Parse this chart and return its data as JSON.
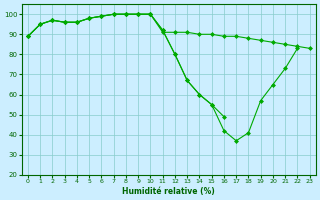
{
  "xlabel": "Humidité relative (%)",
  "background_color": "#cceeff",
  "grid_color": "#88cccc",
  "line_color": "#00aa00",
  "xlim": [
    -0.5,
    23.5
  ],
  "ylim": [
    20,
    105
  ],
  "yticks": [
    20,
    30,
    40,
    50,
    60,
    70,
    80,
    90,
    100
  ],
  "xticks": [
    0,
    1,
    2,
    3,
    4,
    5,
    6,
    7,
    8,
    9,
    10,
    11,
    12,
    13,
    14,
    15,
    16,
    17,
    18,
    19,
    20,
    21,
    22,
    23
  ],
  "line1_x": [
    0,
    1,
    2,
    3,
    4,
    5,
    6,
    7,
    8,
    9,
    10,
    11,
    12,
    13,
    14,
    15,
    16
  ],
  "line1_y": [
    89,
    95,
    97,
    96,
    96,
    98,
    99,
    100,
    100,
    100,
    100,
    92,
    80,
    67,
    60,
    55,
    49
  ],
  "line2_x": [
    0,
    1,
    2,
    3,
    4,
    5,
    6,
    7,
    8,
    9,
    10,
    11,
    12,
    13,
    14,
    15,
    16,
    17,
    18,
    19,
    20,
    21,
    22
  ],
  "line2_y": [
    89,
    95,
    97,
    96,
    96,
    98,
    99,
    100,
    100,
    100,
    100,
    92,
    80,
    67,
    60,
    55,
    42,
    37,
    41,
    57,
    65,
    73,
    83
  ],
  "line3_x": [
    0,
    1,
    2,
    3,
    4,
    5,
    6,
    7,
    8,
    9,
    10,
    11,
    12,
    13,
    14,
    15,
    16,
    17,
    18,
    19,
    20,
    21,
    22,
    23
  ],
  "line3_y": [
    89,
    95,
    97,
    96,
    96,
    98,
    99,
    100,
    100,
    100,
    100,
    91,
    91,
    91,
    90,
    90,
    89,
    89,
    88,
    87,
    86,
    85,
    84,
    83
  ]
}
